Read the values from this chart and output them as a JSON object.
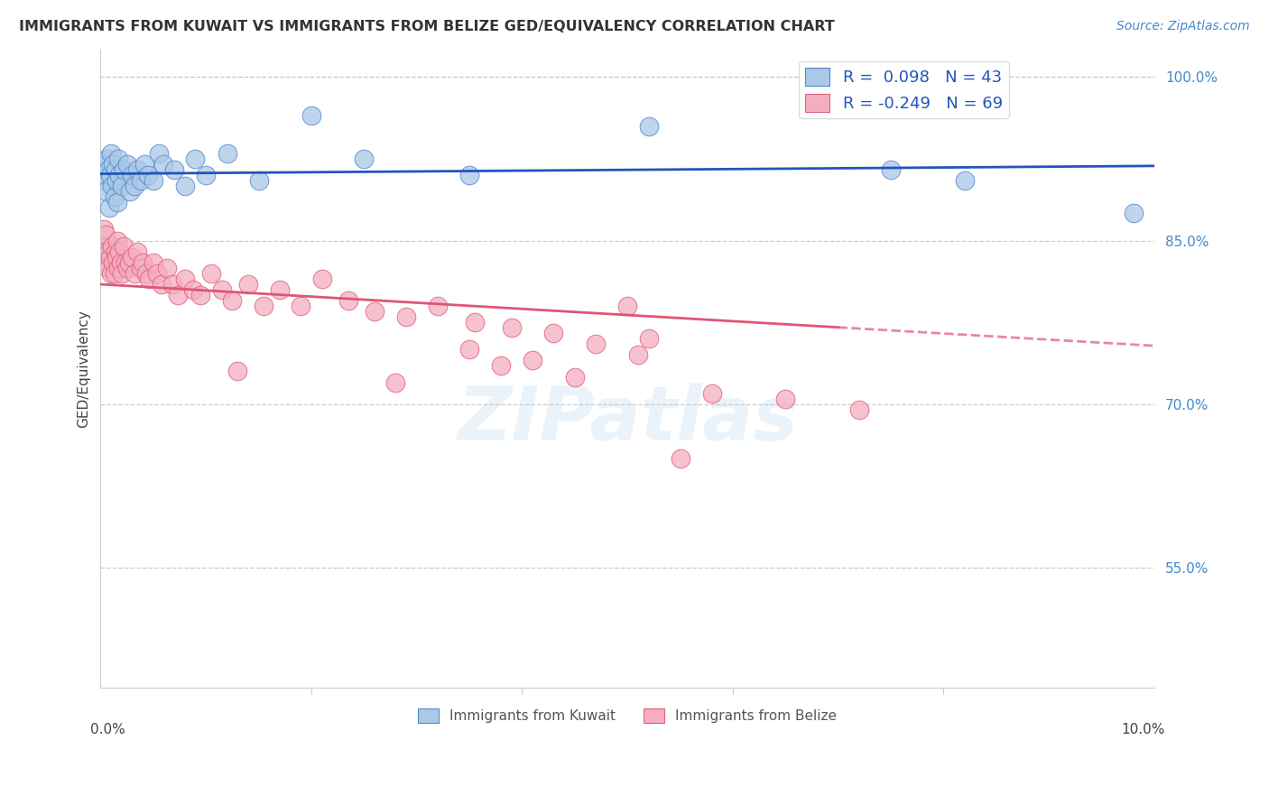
{
  "title": "IMMIGRANTS FROM KUWAIT VS IMMIGRANTS FROM BELIZE GED/EQUIVALENCY CORRELATION CHART",
  "source": "Source: ZipAtlas.com",
  "ylabel": "GED/Equivalency",
  "xmin": 0.0,
  "xmax": 10.0,
  "ymin": 44.0,
  "ymax": 102.5,
  "yticks": [
    55.0,
    70.0,
    85.0,
    100.0
  ],
  "r_kuwait": 0.098,
  "n_kuwait": 43,
  "r_belize": -0.249,
  "n_belize": 69,
  "color_kuwait": "#aac8e8",
  "color_belize": "#f5aec0",
  "edge_kuwait": "#5588cc",
  "edge_belize": "#dd6080",
  "line_kuwait": "#2255bb",
  "line_belize": "#e05575",
  "legend_kuwait": "Immigrants from Kuwait",
  "legend_belize": "Immigrants from Belize",
  "watermark": "ZIPatlas",
  "kuwait_x": [
    0.02,
    0.03,
    0.04,
    0.05,
    0.06,
    0.07,
    0.08,
    0.09,
    0.1,
    0.11,
    0.12,
    0.13,
    0.14,
    0.15,
    0.16,
    0.17,
    0.18,
    0.2,
    0.22,
    0.25,
    0.28,
    0.3,
    0.32,
    0.35,
    0.38,
    0.42,
    0.45,
    0.5,
    0.55,
    0.6,
    0.7,
    0.8,
    0.9,
    1.0,
    1.2,
    1.5,
    2.0,
    2.5,
    3.5,
    5.2,
    7.5,
    8.2,
    9.8
  ],
  "kuwait_y": [
    91.0,
    92.0,
    90.5,
    89.5,
    92.5,
    91.5,
    88.0,
    91.0,
    93.0,
    90.0,
    92.0,
    89.0,
    91.5,
    90.5,
    88.5,
    92.5,
    91.0,
    90.0,
    91.5,
    92.0,
    89.5,
    91.0,
    90.0,
    91.5,
    90.5,
    92.0,
    91.0,
    90.5,
    93.0,
    92.0,
    91.5,
    90.0,
    92.5,
    91.0,
    93.0,
    90.5,
    96.5,
    92.5,
    91.0,
    95.5,
    91.5,
    90.5,
    87.5
  ],
  "belize_x": [
    0.01,
    0.02,
    0.03,
    0.04,
    0.05,
    0.06,
    0.07,
    0.08,
    0.09,
    0.1,
    0.11,
    0.12,
    0.13,
    0.14,
    0.15,
    0.16,
    0.17,
    0.18,
    0.19,
    0.2,
    0.22,
    0.24,
    0.25,
    0.27,
    0.3,
    0.32,
    0.35,
    0.38,
    0.4,
    0.43,
    0.46,
    0.5,
    0.54,
    0.58,
    0.63,
    0.68,
    0.73,
    0.8,
    0.88,
    0.95,
    1.05,
    1.15,
    1.25,
    1.4,
    1.55,
    1.7,
    1.9,
    2.1,
    2.35,
    2.6,
    2.9,
    3.2,
    3.55,
    3.9,
    4.3,
    4.7,
    5.1,
    5.0,
    5.2,
    1.3,
    2.8,
    3.5,
    3.8,
    4.1,
    4.5,
    5.8,
    6.5,
    7.2,
    5.5
  ],
  "belize_y": [
    84.5,
    83.5,
    86.0,
    84.0,
    85.5,
    83.0,
    82.5,
    84.0,
    83.5,
    82.0,
    84.5,
    83.0,
    82.0,
    84.0,
    83.5,
    85.0,
    82.5,
    84.0,
    83.0,
    82.0,
    84.5,
    83.0,
    82.5,
    83.0,
    83.5,
    82.0,
    84.0,
    82.5,
    83.0,
    82.0,
    81.5,
    83.0,
    82.0,
    81.0,
    82.5,
    81.0,
    80.0,
    81.5,
    80.5,
    80.0,
    82.0,
    80.5,
    79.5,
    81.0,
    79.0,
    80.5,
    79.0,
    81.5,
    79.5,
    78.5,
    78.0,
    79.0,
    77.5,
    77.0,
    76.5,
    75.5,
    74.5,
    79.0,
    76.0,
    73.0,
    72.0,
    75.0,
    73.5,
    74.0,
    72.5,
    71.0,
    70.5,
    69.5,
    65.0
  ]
}
